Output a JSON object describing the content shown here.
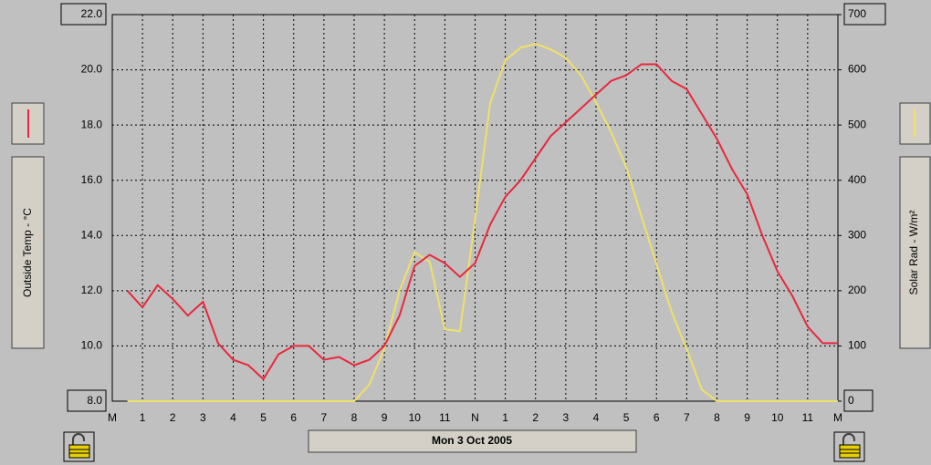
{
  "chart_data": {
    "type": "line",
    "date": "Mon 3 Oct 2005",
    "ylabel": "Outside Temp - °C",
    "y2label": "Solar Rad - W/m²",
    "ylim": [
      8,
      22
    ],
    "yticks": [
      {
        "value": 8,
        "label": "8.0"
      },
      {
        "value": 10,
        "label": "10.0"
      },
      {
        "value": 12,
        "label": "12.0"
      },
      {
        "value": 14,
        "label": "14.0"
      },
      {
        "value": 16,
        "label": "16.0"
      },
      {
        "value": 18,
        "label": "18.0"
      },
      {
        "value": 20,
        "label": "20.0"
      },
      {
        "value": 22,
        "label": "22.0"
      }
    ],
    "y2lim": [
      0,
      700
    ],
    "y2ticks": [
      0,
      100,
      200,
      300,
      400,
      500,
      600,
      700
    ],
    "xlim": [
      0,
      24
    ],
    "xticks": [
      {
        "value": 0,
        "label": "M"
      },
      1,
      2,
      3,
      4,
      5,
      6,
      7,
      8,
      9,
      10,
      11,
      {
        "value": 12,
        "label": "N"
      },
      {
        "value": 13,
        "label": "1"
      },
      {
        "value": 14,
        "label": "2"
      },
      {
        "value": 15,
        "label": "3"
      },
      {
        "value": 16,
        "label": "4"
      },
      {
        "value": 17,
        "label": "5"
      },
      {
        "value": 18,
        "label": "6"
      },
      {
        "value": 19,
        "label": "7"
      },
      {
        "value": 20,
        "label": "8"
      },
      {
        "value": 21,
        "label": "9"
      },
      {
        "value": 22,
        "label": "10"
      },
      {
        "value": 23,
        "label": "11"
      },
      {
        "value": 24,
        "label": "M"
      }
    ],
    "grid": true,
    "x": [
      0.5,
      1,
      1.5,
      2,
      2.5,
      3,
      3.5,
      4,
      4.5,
      5,
      5.5,
      6,
      6.5,
      7,
      7.5,
      8,
      8.5,
      9,
      9.5,
      10,
      10.5,
      11,
      11.5,
      12,
      12.5,
      13,
      13.5,
      14,
      14.5,
      15,
      15.5,
      16,
      16.5,
      17,
      17.5,
      18,
      18.5,
      19,
      19.5,
      20,
      20.5,
      21,
      21.5,
      22,
      22.5,
      23,
      23.5,
      24
    ],
    "series": [
      {
        "color": "#e8283c",
        "axis": "y",
        "values": [
          12.0,
          11.4,
          12.2,
          11.7,
          11.1,
          11.6,
          10.1,
          9.5,
          9.3,
          8.8,
          9.7,
          10.0,
          10.0,
          9.5,
          9.6,
          9.3,
          9.5,
          10.0,
          11.1,
          12.9,
          13.3,
          13.0,
          12.5,
          13.0,
          14.4,
          15.4,
          16.0,
          16.8,
          17.6,
          18.1,
          18.6,
          19.1,
          19.6,
          19.8,
          20.2,
          20.2,
          19.6,
          19.3,
          18.4,
          17.5,
          16.4,
          15.5,
          14.0,
          12.7,
          11.8,
          10.7,
          10.1,
          10.1
        ]
      },
      {
        "color": "#f0e068",
        "axis": "y2",
        "values": [
          0,
          0,
          0,
          0,
          0,
          0,
          0,
          0,
          0,
          0,
          0,
          0,
          0,
          0,
          0,
          0,
          30,
          95,
          200,
          270,
          252,
          130,
          127,
          330,
          540,
          617,
          640,
          647,
          637,
          622,
          590,
          541,
          487,
          424,
          335,
          248,
          162,
          94,
          21,
          0,
          0,
          0,
          0,
          0,
          0,
          0,
          0,
          0
        ]
      }
    ]
  }
}
